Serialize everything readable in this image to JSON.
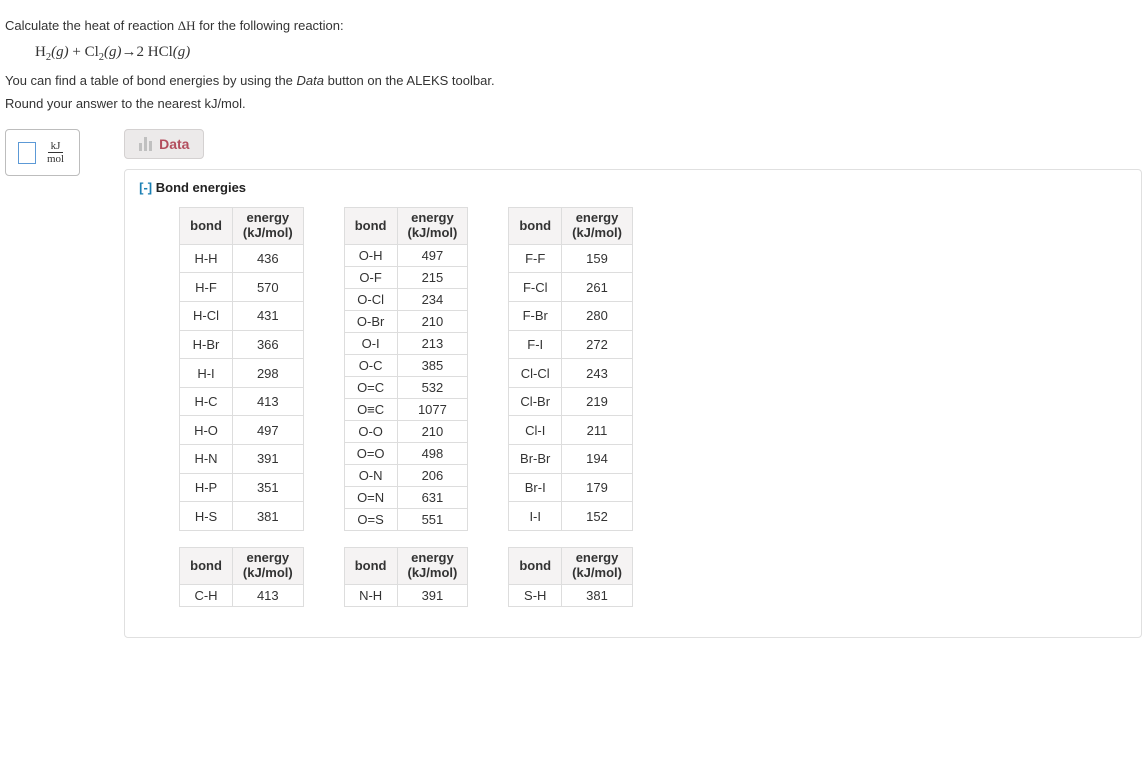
{
  "prompt": {
    "line1_pre": "Calculate the heat of reaction ",
    "line1_delta": "ΔH",
    "line1_post": " for the following reaction:",
    "equation": {
      "h2": "H",
      "h2_sub": "2",
      "h2_phase": "(g)",
      "plus": " + ",
      "cl2": "Cl",
      "cl2_sub": "2",
      "cl2_phase": "(g)",
      "arrow": "→",
      "coef": "2 ",
      "hcl": "HCl",
      "hcl_phase": "(g)"
    },
    "line2_pre": "You can find a table of bond energies by using the ",
    "line2_data": "Data",
    "line2_post": " button on the ALEKS toolbar.",
    "line3": "Round your answer to the nearest kJ/mol."
  },
  "answer_unit": {
    "num": "kJ",
    "den": "mol"
  },
  "data_button": "Data",
  "panel_collapse": "[-]",
  "panel_title": " Bond energies",
  "headers": {
    "bond": "bond",
    "energy_top": "energy",
    "energy_bot": "(kJ/mol)"
  },
  "tables_row1": [
    {
      "rows": [
        [
          "H-H",
          "436"
        ],
        [
          "H-F",
          "570"
        ],
        [
          "H-Cl",
          "431"
        ],
        [
          "H-Br",
          "366"
        ],
        [
          "H-I",
          "298"
        ],
        [
          "H-C",
          "413"
        ],
        [
          "H-O",
          "497"
        ],
        [
          "H-N",
          "391"
        ],
        [
          "H-P",
          "351"
        ],
        [
          "H-S",
          "381"
        ]
      ]
    },
    {
      "rows": [
        [
          "O-H",
          "497"
        ],
        [
          "O-F",
          "215"
        ],
        [
          "O-Cl",
          "234"
        ],
        [
          "O-Br",
          "210"
        ],
        [
          "O-I",
          "213"
        ],
        [
          "O-C",
          "385"
        ],
        [
          "O=C",
          "532"
        ],
        [
          "O≡C",
          "1077"
        ],
        [
          "O-O",
          "210"
        ],
        [
          "O=O",
          "498"
        ],
        [
          "O-N",
          "206"
        ],
        [
          "O=N",
          "631"
        ],
        [
          "O=S",
          "551"
        ]
      ]
    },
    {
      "rows": [
        [
          "F-F",
          "159"
        ],
        [
          "F-Cl",
          "261"
        ],
        [
          "F-Br",
          "280"
        ],
        [
          "F-I",
          "272"
        ],
        [
          "Cl-Cl",
          "243"
        ],
        [
          "Cl-Br",
          "219"
        ],
        [
          "Cl-I",
          "211"
        ],
        [
          "Br-Br",
          "194"
        ],
        [
          "Br-I",
          "179"
        ],
        [
          "I-I",
          "152"
        ]
      ]
    }
  ],
  "tables_row2": [
    {
      "rows": [
        [
          "C-H",
          "413"
        ]
      ]
    },
    {
      "rows": [
        [
          "N-H",
          "391"
        ]
      ]
    },
    {
      "rows": [
        [
          "S-H",
          "381"
        ]
      ]
    }
  ],
  "colors": {
    "link": "#1a7fb3",
    "accent": "#b34e5e",
    "border": "#ddd",
    "header_bg": "#f5f3f3"
  }
}
